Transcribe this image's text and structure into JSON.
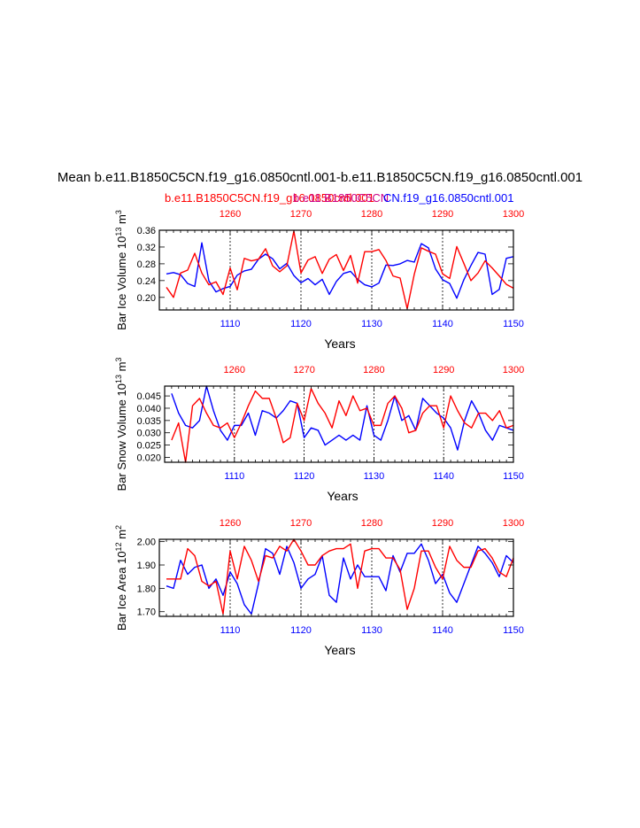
{
  "title": "Mean b.e11.B1850C5CN.f19_g16.0850cntl.001-b.e11.B1850C5CN.f19_g16.0850cntl.001",
  "subtitle": {
    "left": "b.e11.B1850C5CN.f19_g16.0850cntl.001",
    "mid": "b.e11.B1850C5CN",
    "right": "CN.f19_g16.0850cntl.001"
  },
  "colors": {
    "case1": "#ff0000",
    "case2": "#0000ff"
  },
  "chart_data": [
    {
      "type": "line",
      "ylabel_main": "Bar Ice Volume 10",
      "ylabel_sup": "13",
      "ylabel_tail": " m",
      "ylabel_unit_sup": "3",
      "xlabel": "Years",
      "ylim": [
        0.17,
        0.36
      ],
      "yticks": [
        0.2,
        0.24,
        0.28,
        0.32,
        0.36
      ],
      "ytick_labels": [
        "0.20",
        "0.24",
        "0.28",
        "0.32",
        "0.36"
      ],
      "xlim_bottom": [
        1100,
        1150
      ],
      "xticks_bottom": [
        "1110",
        "1120",
        "1130",
        "1140",
        "1150"
      ],
      "xticks_top": [
        "1260",
        "1270",
        "1280",
        "1290",
        "1300"
      ],
      "series": [
        {
          "name": "b.e11.B1850C5CN.f19_g16.0850cntl.001 (blue)",
          "color": "#0000ff",
          "values": [
            0.256,
            0.259,
            0.254,
            0.233,
            0.226,
            0.33,
            0.239,
            0.213,
            0.221,
            0.226,
            0.253,
            0.263,
            0.267,
            0.291,
            0.303,
            0.292,
            0.268,
            0.281,
            0.252,
            0.235,
            0.245,
            0.23,
            0.243,
            0.207,
            0.238,
            0.257,
            0.262,
            0.243,
            0.23,
            0.225,
            0.234,
            0.277,
            0.276,
            0.28,
            0.288,
            0.284,
            0.328,
            0.318,
            0.268,
            0.242,
            0.233,
            0.198,
            0.242,
            0.276,
            0.307,
            0.303,
            0.207,
            0.219,
            0.293,
            0.297
          ]
        },
        {
          "name": "b.e11.B1850C5CN.f19_g16.0850cntl.001 (red)",
          "color": "#ff0000",
          "values": [
            0.224,
            0.2,
            0.258,
            0.265,
            0.305,
            0.258,
            0.23,
            0.237,
            0.207,
            0.27,
            0.218,
            0.293,
            0.287,
            0.291,
            0.316,
            0.275,
            0.261,
            0.275,
            0.358,
            0.258,
            0.289,
            0.297,
            0.257,
            0.291,
            0.302,
            0.264,
            0.3,
            0.234,
            0.309,
            0.309,
            0.314,
            0.288,
            0.251,
            0.246,
            0.173,
            0.255,
            0.318,
            0.31,
            0.303,
            0.256,
            0.245,
            0.321,
            0.281,
            0.24,
            0.258,
            0.287,
            0.27,
            0.251,
            0.231,
            0.222
          ]
        }
      ]
    },
    {
      "type": "line",
      "ylabel_main": "Bar Snow Volume 10",
      "ylabel_sup": "13",
      "ylabel_tail": " m",
      "ylabel_unit_sup": "3",
      "xlabel": "Years",
      "ylim": [
        0.018,
        0.049
      ],
      "yticks": [
        0.02,
        0.025,
        0.03,
        0.035,
        0.04,
        0.045
      ],
      "ytick_labels": [
        "0.020",
        "0.025",
        "0.030",
        "0.035",
        "0.040",
        "0.045"
      ],
      "xlim_bottom": [
        1100,
        1150
      ],
      "xticks_bottom": [
        "1110",
        "1120",
        "1130",
        "1140",
        "1150"
      ],
      "xticks_top": [
        "1260",
        "1270",
        "1280",
        "1290",
        "1300"
      ],
      "series": [
        {
          "name": "b.e11.B1850C5CN.f19_g16.0850cntl.001 (blue)",
          "color": "#0000ff",
          "values": [
            0.046,
            0.038,
            0.033,
            0.032,
            0.035,
            0.049,
            0.039,
            0.031,
            0.027,
            0.033,
            0.033,
            0.038,
            0.029,
            0.039,
            0.038,
            0.036,
            0.039,
            0.043,
            0.042,
            0.028,
            0.032,
            0.031,
            0.025,
            0.027,
            0.029,
            0.027,
            0.029,
            0.027,
            0.041,
            0.029,
            0.027,
            0.035,
            0.045,
            0.035,
            0.037,
            0.031,
            0.044,
            0.041,
            0.038,
            0.036,
            0.032,
            0.023,
            0.035,
            0.043,
            0.038,
            0.031,
            0.027,
            0.033,
            0.032,
            0.031
          ]
        },
        {
          "name": "b.e11.B1850C5CN.f19_g16.0850cntl.001 (red)",
          "color": "#ff0000",
          "values": [
            0.027,
            0.034,
            0.018,
            0.041,
            0.044,
            0.038,
            0.033,
            0.032,
            0.034,
            0.028,
            0.034,
            0.041,
            0.047,
            0.044,
            0.044,
            0.036,
            0.026,
            0.028,
            0.042,
            0.035,
            0.048,
            0.042,
            0.038,
            0.032,
            0.043,
            0.037,
            0.045,
            0.039,
            0.04,
            0.033,
            0.033,
            0.042,
            0.045,
            0.04,
            0.03,
            0.031,
            0.038,
            0.041,
            0.041,
            0.032,
            0.045,
            0.039,
            0.034,
            0.032,
            0.038,
            0.038,
            0.035,
            0.039,
            0.032,
            0.033
          ]
        }
      ]
    },
    {
      "type": "line",
      "ylabel_main": "Bar Ice Area 10",
      "ylabel_sup": "12",
      "ylabel_tail": " m",
      "ylabel_unit_sup": "2",
      "xlabel": "Years",
      "ylim": [
        1.68,
        2.01
      ],
      "yticks": [
        1.7,
        1.8,
        1.9,
        2.0
      ],
      "ytick_labels": [
        "1.70",
        "1.80",
        "1.90",
        "2.00"
      ],
      "xlim_bottom": [
        1100,
        1150
      ],
      "xticks_bottom": [
        "1110",
        "1120",
        "1130",
        "1140",
        "1150"
      ],
      "xticks_top": [
        "1260",
        "1270",
        "1280",
        "1290",
        "1300"
      ],
      "series": [
        {
          "name": "b.e11.B1850C5CN.f19_g16.0850cntl.001 (blue)",
          "color": "#0000ff",
          "values": [
            1.81,
            1.8,
            1.92,
            1.86,
            1.89,
            1.9,
            1.8,
            1.84,
            1.77,
            1.87,
            1.82,
            1.73,
            1.69,
            1.82,
            1.97,
            1.95,
            1.86,
            1.98,
            1.91,
            1.8,
            1.84,
            1.86,
            1.94,
            1.77,
            1.74,
            1.93,
            1.84,
            1.9,
            1.85,
            1.85,
            1.85,
            1.79,
            1.94,
            1.87,
            1.95,
            1.95,
            1.99,
            1.92,
            1.82,
            1.86,
            1.78,
            1.74,
            1.82,
            1.9,
            1.98,
            1.95,
            1.91,
            1.85,
            1.94,
            1.91
          ]
        },
        {
          "name": "b.e11.B1850C5CN.f19_g16.0850cntl.001 (red)",
          "color": "#ff0000",
          "values": [
            1.84,
            1.84,
            1.84,
            1.97,
            1.94,
            1.83,
            1.81,
            1.83,
            1.69,
            1.96,
            1.84,
            1.98,
            1.92,
            1.83,
            1.94,
            1.93,
            1.98,
            1.96,
            2.01,
            1.96,
            1.9,
            1.9,
            1.94,
            1.96,
            1.97,
            1.97,
            1.99,
            1.8,
            1.96,
            1.97,
            1.97,
            1.93,
            1.93,
            1.88,
            1.71,
            1.8,
            1.96,
            1.96,
            1.89,
            1.84,
            1.98,
            1.92,
            1.89,
            1.89,
            1.96,
            1.97,
            1.93,
            1.87,
            1.85,
            1.93
          ]
        }
      ]
    }
  ]
}
